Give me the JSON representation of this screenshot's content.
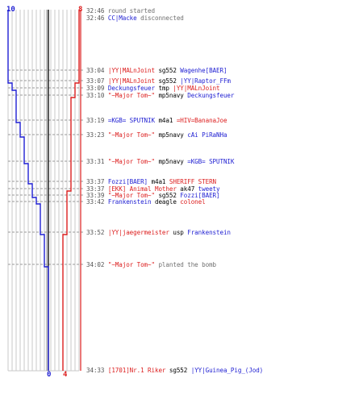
{
  "colors": {
    "ct": "#1e1ed2",
    "t": "#dc1e1e",
    "time": "#555555",
    "info": "#707070",
    "grid": "#c8c8c8",
    "axis": "#000000"
  },
  "counts": {
    "ct_start": "10",
    "t_start": "8",
    "ct_end": "0",
    "t_end": "4"
  },
  "chart_data": {
    "type": "line",
    "title": "",
    "xlabel": "",
    "ylabel": "",
    "series": [
      {
        "name": "",
        "team": "ct",
        "steps": [
          10,
          10,
          9,
          8,
          8,
          7,
          6,
          5,
          4,
          4,
          3,
          2,
          1,
          0
        ]
      },
      {
        "name": "",
        "team": "t",
        "steps": [
          8,
          8,
          7,
          7,
          6,
          6,
          6,
          6,
          6,
          5,
          5,
          5,
          4,
          4
        ]
      }
    ]
  },
  "events": [
    {
      "time": "32:46",
      "parts": [
        {
          "text": "round started",
          "color": "#707070"
        }
      ]
    },
    {
      "time": "32:46",
      "parts": [
        {
          "text": "CC|Macke",
          "color": "#1e1ed2"
        },
        {
          "text": " disconnected",
          "color": "#707070"
        }
      ]
    },
    {
      "time": "33:04",
      "parts": [
        {
          "text": "|YY|MALnJoint",
          "color": "#dc1e1e"
        },
        {
          "text": " sg552 ",
          "color": "#000000"
        },
        {
          "text": "Wagenhe[BAER]",
          "color": "#1e1ed2"
        }
      ]
    },
    {
      "time": "33:07",
      "parts": [
        {
          "text": "|YY|MALnJoint",
          "color": "#dc1e1e"
        },
        {
          "text": " sg552 ",
          "color": "#000000"
        },
        {
          "text": "|YY|Raptor_FFm",
          "color": "#1e1ed2"
        }
      ]
    },
    {
      "time": "33:09",
      "parts": [
        {
          "text": "Deckungsfeuer",
          "color": "#1e1ed2"
        },
        {
          "text": " tmp ",
          "color": "#000000"
        },
        {
          "text": "|YY|MALnJoint",
          "color": "#dc1e1e"
        }
      ]
    },
    {
      "time": "33:10",
      "parts": [
        {
          "text": "\"~Major Tom~\"",
          "color": "#dc1e1e"
        },
        {
          "text": " mp5navy ",
          "color": "#000000"
        },
        {
          "text": "Deckungsfeuer",
          "color": "#1e1ed2"
        }
      ]
    },
    {
      "time": "33:19",
      "parts": [
        {
          "text": "=KGB= SPUTNIK",
          "color": "#1e1ed2"
        },
        {
          "text": " m4a1 ",
          "color": "#000000"
        },
        {
          "text": "=HIV=BananaJoe",
          "color": "#dc1e1e"
        }
      ]
    },
    {
      "time": "33:23",
      "parts": [
        {
          "text": "\"~Major Tom~\"",
          "color": "#dc1e1e"
        },
        {
          "text": " mp5navy ",
          "color": "#000000"
        },
        {
          "text": "cAi PiRaNHa",
          "color": "#1e1ed2"
        }
      ]
    },
    {
      "time": "33:31",
      "parts": [
        {
          "text": "\"~Major Tom~\"",
          "color": "#dc1e1e"
        },
        {
          "text": " mp5navy ",
          "color": "#000000"
        },
        {
          "text": "=KGB= SPUTNIK",
          "color": "#1e1ed2"
        }
      ]
    },
    {
      "time": "33:37",
      "parts": [
        {
          "text": "Fozzi[BAER]",
          "color": "#1e1ed2"
        },
        {
          "text": " m4a1 ",
          "color": "#000000"
        },
        {
          "text": "SHERIFF STERN",
          "color": "#dc1e1e"
        }
      ]
    },
    {
      "time": "33:37",
      "parts": [
        {
          "text": "[EKK] Animal Mother",
          "color": "#dc1e1e"
        },
        {
          "text": " ak47 ",
          "color": "#000000"
        },
        {
          "text": "tweety",
          "color": "#1e1ed2"
        }
      ]
    },
    {
      "time": "33:39",
      "parts": [
        {
          "text": "\"~Major Tom~\"",
          "color": "#dc1e1e"
        },
        {
          "text": " sg552 ",
          "color": "#000000"
        },
        {
          "text": "Fozzi[BAER]",
          "color": "#1e1ed2"
        }
      ]
    },
    {
      "time": "33:42",
      "parts": [
        {
          "text": "Frankenstein",
          "color": "#1e1ed2"
        },
        {
          "text": " deagle ",
          "color": "#000000"
        },
        {
          "text": "colonel",
          "color": "#dc1e1e"
        }
      ]
    },
    {
      "time": "33:52",
      "parts": [
        {
          "text": "|YY|jaegermeister",
          "color": "#dc1e1e"
        },
        {
          "text": " usp ",
          "color": "#000000"
        },
        {
          "text": "Frankenstein",
          "color": "#1e1ed2"
        }
      ]
    },
    {
      "time": "34:02",
      "parts": [
        {
          "text": "\"~Major Tom~\"",
          "color": "#dc1e1e"
        },
        {
          "text": " planted the bomb",
          "color": "#707070"
        }
      ]
    },
    {
      "time": "34:33",
      "parts": [
        {
          "text": "[1701]Nr.1 Riker",
          "color": "#dc1e1e"
        },
        {
          "text": " sg552 ",
          "color": "#000000"
        },
        {
          "text": "|YY|Guinea_Pig_(Jod)",
          "color": "#1e1ed2"
        }
      ]
    }
  ]
}
